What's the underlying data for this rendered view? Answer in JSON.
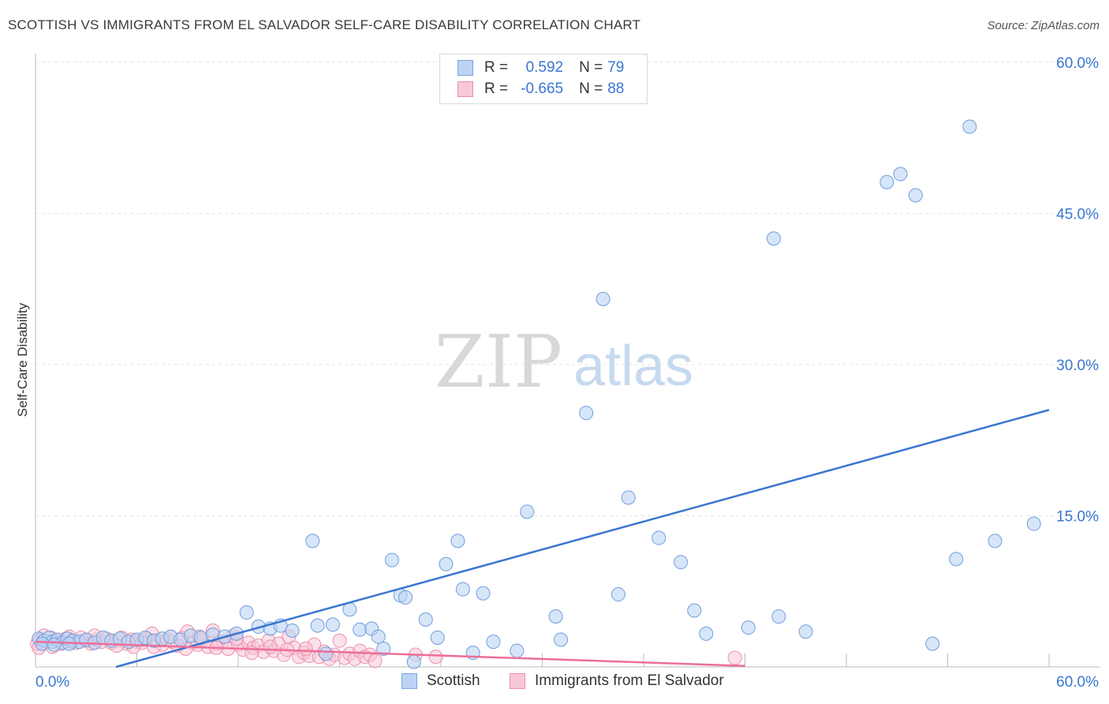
{
  "title": "SCOTTISH VS IMMIGRANTS FROM EL SALVADOR SELF-CARE DISABILITY CORRELATION CHART",
  "source": "Source: ZipAtlas.com",
  "stats": {
    "rows": [
      {
        "r_label": "R =",
        "r_value": "0.592",
        "n_label": "N =",
        "n_value": "79"
      },
      {
        "r_label": "R =",
        "r_value": "-0.665",
        "n_label": "N =",
        "n_value": "88"
      }
    ]
  },
  "legend": {
    "scottish": "Scottish",
    "salvador": "Immigrants from El Salvador"
  },
  "watermark": {
    "zip": "ZIP",
    "atlas": "atlas"
  },
  "colors": {
    "blue": "#3a76d0",
    "blue_fill": "#bcd3f4",
    "pink": "#ec6f97",
    "pink_fill": "#f8c8d7"
  },
  "chart_data": {
    "type": "scatter",
    "title": "SCOTTISH VS IMMIGRANTS FROM EL SALVADOR SELF-CARE DISABILITY CORRELATION CHART",
    "xlabel": "",
    "ylabel": "Self-Care Disability",
    "xlim": [
      0,
      60
    ],
    "ylim": [
      0,
      60
    ],
    "x_tick_labels": [
      "0.0%",
      "60.0%"
    ],
    "y_ticks": [
      15,
      30,
      45,
      60
    ],
    "y_tick_labels": [
      "15.0%",
      "30.0%",
      "45.0%",
      "60.0%"
    ],
    "series": [
      {
        "name": "Scottish",
        "r": 0.592,
        "n": 79,
        "trend": {
          "x": [
            0,
            60
          ],
          "y": [
            -2.2,
            25.5
          ]
        },
        "points": [
          [
            0.2,
            2.8
          ],
          [
            0.5,
            2.6
          ],
          [
            0.8,
            2.9
          ],
          [
            1.0,
            2.5
          ],
          [
            1.3,
            2.7
          ],
          [
            1.6,
            2.4
          ],
          [
            1.9,
            2.8
          ],
          [
            2.2,
            2.6
          ],
          [
            2.6,
            2.5
          ],
          [
            3.0,
            2.7
          ],
          [
            3.5,
            2.4
          ],
          [
            4.0,
            2.9
          ],
          [
            4.5,
            2.6
          ],
          [
            5.0,
            2.8
          ],
          [
            5.5,
            2.5
          ],
          [
            6.0,
            2.7
          ],
          [
            6.5,
            2.9
          ],
          [
            7.0,
            2.6
          ],
          [
            7.5,
            2.8
          ],
          [
            8.0,
            3.0
          ],
          [
            8.6,
            2.7
          ],
          [
            9.2,
            3.1
          ],
          [
            9.8,
            2.9
          ],
          [
            10.5,
            3.2
          ],
          [
            11.2,
            3.0
          ],
          [
            11.9,
            3.3
          ],
          [
            12.5,
            5.4
          ],
          [
            13.2,
            4.0
          ],
          [
            13.9,
            3.8
          ],
          [
            14.5,
            4.1
          ],
          [
            15.2,
            3.6
          ],
          [
            16.4,
            12.5
          ],
          [
            16.7,
            4.1
          ],
          [
            17.2,
            1.3
          ],
          [
            17.6,
            4.2
          ],
          [
            18.6,
            5.7
          ],
          [
            19.2,
            3.7
          ],
          [
            19.9,
            3.8
          ],
          [
            20.3,
            3.0
          ],
          [
            20.6,
            1.8
          ],
          [
            21.1,
            10.6
          ],
          [
            21.6,
            7.1
          ],
          [
            21.9,
            6.9
          ],
          [
            22.4,
            0.5
          ],
          [
            23.1,
            4.7
          ],
          [
            23.8,
            2.9
          ],
          [
            24.3,
            10.2
          ],
          [
            25.0,
            12.5
          ],
          [
            25.3,
            7.7
          ],
          [
            25.9,
            1.4
          ],
          [
            26.5,
            7.3
          ],
          [
            27.1,
            2.5
          ],
          [
            28.5,
            1.6
          ],
          [
            29.1,
            15.4
          ],
          [
            30.8,
            5.0
          ],
          [
            31.1,
            2.7
          ],
          [
            32.6,
            25.2
          ],
          [
            33.6,
            36.5
          ],
          [
            34.5,
            7.2
          ],
          [
            35.1,
            16.8
          ],
          [
            36.9,
            12.8
          ],
          [
            38.2,
            10.4
          ],
          [
            39.0,
            5.6
          ],
          [
            39.7,
            3.3
          ],
          [
            42.2,
            3.9
          ],
          [
            43.7,
            42.5
          ],
          [
            44.0,
            5.0
          ],
          [
            45.6,
            3.5
          ],
          [
            50.4,
            48.1
          ],
          [
            51.2,
            48.9
          ],
          [
            52.1,
            46.8
          ],
          [
            53.1,
            2.3
          ],
          [
            54.5,
            10.7
          ],
          [
            55.3,
            53.6
          ],
          [
            56.8,
            12.5
          ],
          [
            59.1,
            14.2
          ],
          [
            0.4,
            2.3
          ],
          [
            1.1,
            2.2
          ],
          [
            2.0,
            2.3
          ]
        ]
      },
      {
        "name": "Immigrants from El Salvador",
        "r": -0.665,
        "n": 88,
        "trend": {
          "x": [
            0,
            42
          ],
          "y": [
            2.5,
            0.1
          ]
        },
        "points": [
          [
            0.1,
            2.3
          ],
          [
            0.3,
            2.7
          ],
          [
            0.6,
            2.5
          ],
          [
            0.9,
            2.9
          ],
          [
            1.2,
            2.6
          ],
          [
            1.5,
            2.3
          ],
          [
            1.8,
            2.8
          ],
          [
            2.1,
            2.5
          ],
          [
            2.4,
            2.4
          ],
          [
            2.7,
            2.9
          ],
          [
            3.0,
            2.6
          ],
          [
            3.3,
            2.3
          ],
          [
            3.6,
            2.7
          ],
          [
            3.9,
            2.5
          ],
          [
            4.2,
            2.8
          ],
          [
            4.5,
            2.4
          ],
          [
            4.8,
            2.6
          ],
          [
            5.1,
            2.9
          ],
          [
            5.4,
            2.3
          ],
          [
            5.7,
            2.7
          ],
          [
            6.0,
            2.5
          ],
          [
            6.3,
            2.4
          ],
          [
            6.6,
            2.8
          ],
          [
            6.9,
            3.3
          ],
          [
            7.2,
            2.6
          ],
          [
            7.5,
            2.2
          ],
          [
            7.8,
            2.7
          ],
          [
            8.1,
            2.5
          ],
          [
            8.4,
            2.1
          ],
          [
            8.7,
            2.9
          ],
          [
            9.0,
            3.5
          ],
          [
            9.3,
            2.4
          ],
          [
            9.6,
            2.2
          ],
          [
            9.9,
            2.7
          ],
          [
            10.2,
            2.0
          ],
          [
            10.5,
            3.6
          ],
          [
            10.8,
            2.3
          ],
          [
            11.1,
            2.5
          ],
          [
            11.4,
            1.8
          ],
          [
            11.7,
            3.1
          ],
          [
            12.0,
            2.2
          ],
          [
            12.3,
            1.7
          ],
          [
            12.6,
            2.4
          ],
          [
            12.9,
            1.9
          ],
          [
            13.2,
            2.1
          ],
          [
            13.5,
            1.5
          ],
          [
            13.8,
            2.6
          ],
          [
            14.1,
            1.6
          ],
          [
            14.4,
            2.3
          ],
          [
            14.7,
            1.2
          ],
          [
            15.0,
            3.0
          ],
          [
            15.3,
            1.9
          ],
          [
            15.6,
            1.0
          ],
          [
            15.9,
            1.4
          ],
          [
            16.2,
            1.1
          ],
          [
            16.5,
            2.2
          ],
          [
            16.8,
            1.0
          ],
          [
            17.1,
            1.5
          ],
          [
            17.4,
            0.8
          ],
          [
            17.7,
            1.2
          ],
          [
            18.0,
            2.6
          ],
          [
            18.3,
            0.9
          ],
          [
            18.6,
            1.3
          ],
          [
            18.9,
            0.8
          ],
          [
            19.2,
            1.6
          ],
          [
            19.5,
            1.0
          ],
          [
            19.8,
            1.2
          ],
          [
            20.1,
            0.6
          ],
          [
            22.5,
            1.2
          ],
          [
            23.7,
            1.0
          ],
          [
            41.4,
            0.9
          ],
          [
            0.2,
            1.9
          ],
          [
            0.5,
            3.1
          ],
          [
            1.0,
            2.0
          ],
          [
            2.0,
            3.0
          ],
          [
            3.5,
            3.1
          ],
          [
            4.8,
            2.1
          ],
          [
            5.8,
            2.0
          ],
          [
            7.0,
            2.0
          ],
          [
            8.0,
            3.0
          ],
          [
            8.9,
            1.8
          ],
          [
            9.7,
            3.0
          ],
          [
            10.7,
            1.9
          ],
          [
            11.9,
            2.8
          ],
          [
            12.8,
            1.4
          ],
          [
            13.9,
            2.0
          ],
          [
            14.9,
            1.7
          ],
          [
            16.0,
            1.8
          ]
        ]
      }
    ]
  }
}
